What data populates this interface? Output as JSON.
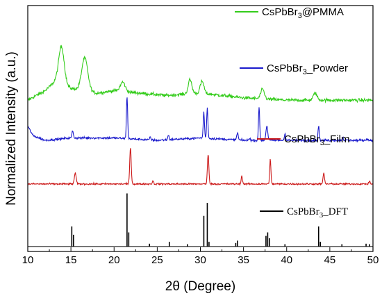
{
  "chart_data": {
    "type": "line",
    "xlabel": "2θ (Degree)",
    "ylabel": "Normalized Intensity (a.u.)",
    "xlim": [
      10,
      50
    ],
    "x_ticks": [
      "10",
      "15",
      "20",
      "25",
      "30",
      "35",
      "40",
      "45",
      "50"
    ],
    "y_ticks_labeled": false,
    "grid": false,
    "series": [
      {
        "name": "CsPbBr3@PMMA",
        "label_parts": {
          "main": "CsPbBr",
          "sub": "3",
          "tail": "@PMMA"
        },
        "color": "#33cc1a",
        "baseline": 0.62,
        "noise": 0.006,
        "background": [
          [
            10,
            0.0
          ],
          [
            12,
            0.04
          ],
          [
            13.2,
            0.08
          ],
          [
            15,
            0.05
          ],
          [
            18,
            0.03
          ],
          [
            20,
            0.04
          ],
          [
            23,
            0.03
          ],
          [
            26,
            0.02
          ],
          [
            30,
            0.03
          ],
          [
            35,
            0.01
          ],
          [
            40,
            0.0
          ],
          [
            45,
            0.0
          ],
          [
            50,
            0.0
          ]
        ],
        "peaks": [
          {
            "x": 13.9,
            "h": 0.16,
            "w": 0.45
          },
          {
            "x": 16.6,
            "h": 0.14,
            "w": 0.5
          },
          {
            "x": 21.0,
            "h": 0.04,
            "w": 0.4
          },
          {
            "x": 28.8,
            "h": 0.06,
            "w": 0.3
          },
          {
            "x": 30.2,
            "h": 0.05,
            "w": 0.3
          },
          {
            "x": 37.2,
            "h": 0.04,
            "w": 0.3
          },
          {
            "x": 43.3,
            "h": 0.03,
            "w": 0.3
          }
        ]
      },
      {
        "name": "CsPbBr3_Powder",
        "label_parts": {
          "main": "CsPbBr",
          "sub": "3",
          "tail": "_Powder"
        },
        "color": "#1a1acc",
        "baseline": 0.45,
        "noise": 0.004,
        "background": [
          [
            10,
            0.06
          ],
          [
            10.6,
            0.02
          ],
          [
            12,
            0.0
          ],
          [
            15,
            0.01
          ],
          [
            20,
            0.01
          ],
          [
            25,
            0.0
          ],
          [
            30,
            0.01
          ],
          [
            35,
            0.0
          ],
          [
            40,
            0.0
          ],
          [
            45,
            0.0
          ],
          [
            50,
            0.0
          ]
        ],
        "peaks": [
          {
            "x": 15.2,
            "h": 0.03,
            "w": 0.12
          },
          {
            "x": 21.5,
            "h": 0.18,
            "w": 0.1
          },
          {
            "x": 24.2,
            "h": 0.012,
            "w": 0.1
          },
          {
            "x": 26.3,
            "h": 0.02,
            "w": 0.1
          },
          {
            "x": 30.4,
            "h": 0.11,
            "w": 0.1
          },
          {
            "x": 30.8,
            "h": 0.13,
            "w": 0.1
          },
          {
            "x": 34.3,
            "h": 0.03,
            "w": 0.12
          },
          {
            "x": 35.7,
            "h": 0.01,
            "w": 0.1
          },
          {
            "x": 36.8,
            "h": 0.14,
            "w": 0.1
          },
          {
            "x": 37.7,
            "h": 0.06,
            "w": 0.15
          },
          {
            "x": 39.8,
            "h": 0.03,
            "w": 0.1
          },
          {
            "x": 43.7,
            "h": 0.06,
            "w": 0.1
          },
          {
            "x": 46.5,
            "h": 0.01,
            "w": 0.1
          },
          {
            "x": 49.3,
            "h": 0.008,
            "w": 0.1
          }
        ]
      },
      {
        "name": "CsPbBr3_Film",
        "label_parts": {
          "main": "CsPbBr",
          "sub": "3",
          "tail": "_Film"
        },
        "color": "#cc1a1a",
        "baseline": 0.265,
        "noise": 0.003,
        "background": [
          [
            10,
            0.0
          ],
          [
            50,
            0.0
          ]
        ],
        "peaks": [
          {
            "x": 15.5,
            "h": 0.045,
            "w": 0.15
          },
          {
            "x": 21.9,
            "h": 0.155,
            "w": 0.12
          },
          {
            "x": 24.5,
            "h": 0.014,
            "w": 0.1
          },
          {
            "x": 30.9,
            "h": 0.125,
            "w": 0.12
          },
          {
            "x": 34.8,
            "h": 0.035,
            "w": 0.1
          },
          {
            "x": 38.1,
            "h": 0.105,
            "w": 0.1
          },
          {
            "x": 44.3,
            "h": 0.045,
            "w": 0.12
          },
          {
            "x": 49.6,
            "h": 0.012,
            "w": 0.1
          }
        ]
      },
      {
        "name": "CsPbBr3_DFT",
        "label_parts": {
          "main": "CsPbBr",
          "sub": "3",
          "tail": "_DFT"
        },
        "color": "#000000",
        "baseline": 0.0,
        "sticks": [
          {
            "x": 15.1,
            "h": 0.085
          },
          {
            "x": 15.3,
            "h": 0.05
          },
          {
            "x": 21.5,
            "h": 0.225
          },
          {
            "x": 21.7,
            "h": 0.06
          },
          {
            "x": 24.1,
            "h": 0.012
          },
          {
            "x": 26.4,
            "h": 0.02
          },
          {
            "x": 28.5,
            "h": 0.01
          },
          {
            "x": 30.4,
            "h": 0.13
          },
          {
            "x": 30.8,
            "h": 0.185
          },
          {
            "x": 31.0,
            "h": 0.02
          },
          {
            "x": 34.1,
            "h": 0.015
          },
          {
            "x": 34.3,
            "h": 0.025
          },
          {
            "x": 37.6,
            "h": 0.045
          },
          {
            "x": 37.8,
            "h": 0.06
          },
          {
            "x": 38.0,
            "h": 0.035
          },
          {
            "x": 39.8,
            "h": 0.01
          },
          {
            "x": 43.7,
            "h": 0.085
          },
          {
            "x": 43.9,
            "h": 0.02
          },
          {
            "x": 46.4,
            "h": 0.01
          },
          {
            "x": 49.2,
            "h": 0.012
          },
          {
            "x": 49.6,
            "h": 0.01
          }
        ]
      }
    ]
  }
}
